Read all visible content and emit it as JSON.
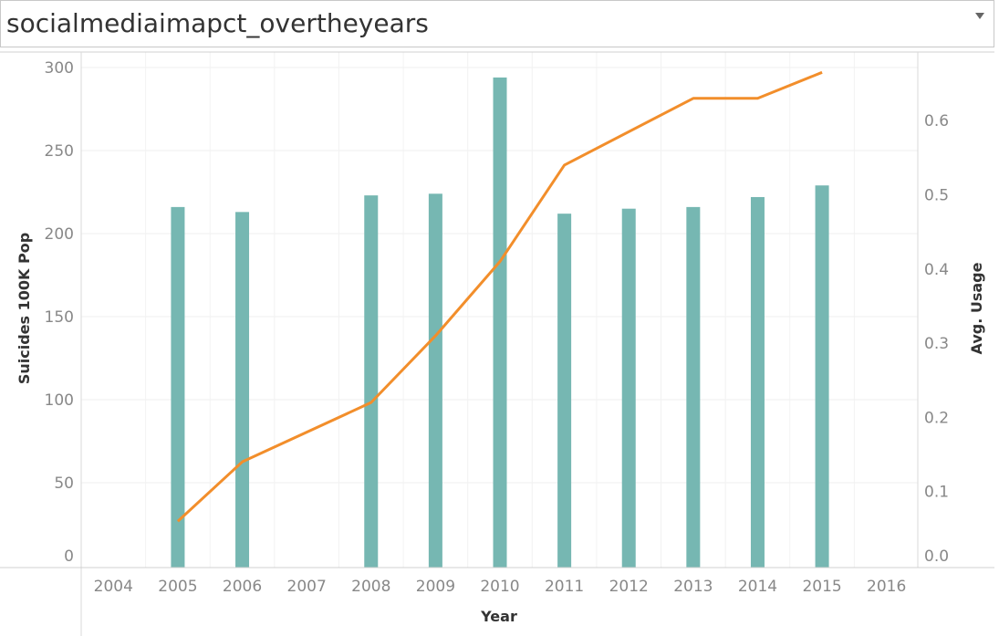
{
  "header": {
    "title": "socialmediaimapct_overtheyears"
  },
  "chart_data": {
    "type": "bar",
    "categories": [
      2004,
      2005,
      2006,
      2007,
      2008,
      2009,
      2010,
      2011,
      2012,
      2013,
      2014,
      2015,
      2016
    ],
    "xlabel": "Year",
    "ylabel": "Suicides 100K Pop",
    "y2label": "Avg. Usage",
    "ylim": [
      0,
      300
    ],
    "y2lim": [
      0,
      0.69
    ],
    "yticks": [
      0,
      50,
      100,
      150,
      200,
      250,
      300
    ],
    "y2ticks": [
      "0.0",
      "0.1",
      "0.2",
      "0.3",
      "0.4",
      "0.5",
      "0.6"
    ],
    "grid": true,
    "colors": {
      "bar": "#76b7b2",
      "line": "#f28e2b"
    },
    "series": [
      {
        "type": "bar",
        "axis": "left",
        "x": [
          2005,
          2006,
          2008,
          2009,
          2010,
          2011,
          2012,
          2013,
          2014,
          2015
        ],
        "values": [
          216,
          213,
          223,
          224,
          294,
          212,
          215,
          216,
          222,
          229
        ]
      },
      {
        "type": "line",
        "axis": "right",
        "x": [
          2005,
          2006,
          2008,
          2009,
          2010,
          2011,
          2013,
          2014,
          2015
        ],
        "values": [
          0.06,
          0.14,
          0.22,
          0.31,
          0.41,
          0.54,
          0.63,
          0.63,
          0.665
        ]
      }
    ]
  }
}
